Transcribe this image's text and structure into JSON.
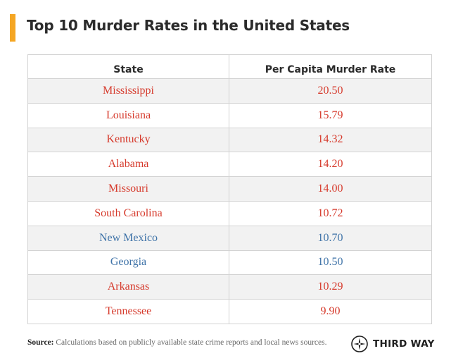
{
  "title": "Top 10 Murder Rates in the United States",
  "colors": {
    "accent_bar": "#f5a623",
    "red_party": "#d63a2c",
    "blue_party": "#3f73a8"
  },
  "table": {
    "headers": [
      "State",
      "Per Capita Murder Rate"
    ],
    "rows": [
      {
        "state": "Mississippi",
        "rate": "20.50",
        "color": "red"
      },
      {
        "state": "Louisiana",
        "rate": "15.79",
        "color": "red"
      },
      {
        "state": "Kentucky",
        "rate": "14.32",
        "color": "red"
      },
      {
        "state": "Alabama",
        "rate": "14.20",
        "color": "red"
      },
      {
        "state": "Missouri",
        "rate": "14.00",
        "color": "red"
      },
      {
        "state": "South Carolina",
        "rate": "10.72",
        "color": "red"
      },
      {
        "state": "New Mexico",
        "rate": "10.70",
        "color": "blue"
      },
      {
        "state": "Georgia",
        "rate": "10.50",
        "color": "blue"
      },
      {
        "state": "Arkansas",
        "rate": "10.29",
        "color": "red"
      },
      {
        "state": "Tennessee",
        "rate": "9.90",
        "color": "red"
      }
    ]
  },
  "footer": {
    "source_label": "Source:",
    "source_text": "Calculations based on publicly available state crime reports and local news sources."
  },
  "logo": {
    "icon": "compass-icon",
    "text": "THIRD WAY"
  }
}
